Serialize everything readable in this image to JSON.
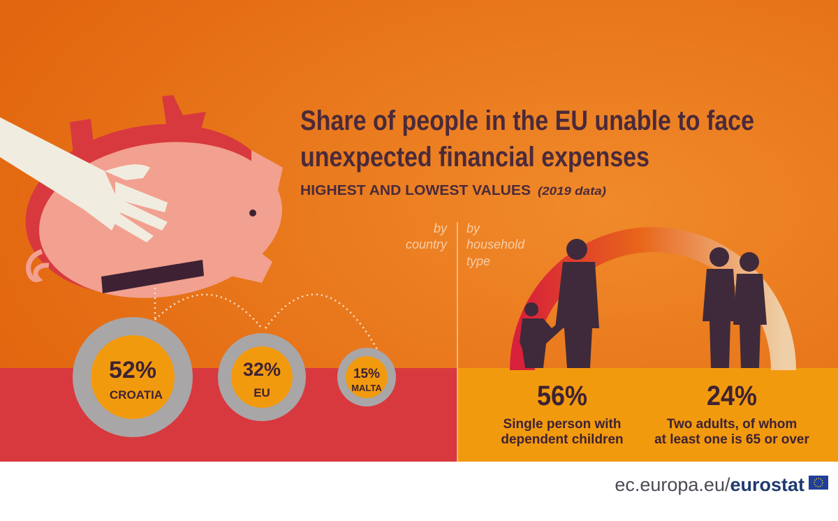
{
  "header": {
    "title_lines": [
      "Share of people in the EU unable to face",
      "unexpected financial expenses"
    ],
    "subtitle": "HIGHEST AND LOWEST VALUES",
    "note": "(2019 data)"
  },
  "by_country": {
    "label_lines": [
      "by",
      "country"
    ],
    "coins": [
      {
        "value": "52%",
        "label": "CROATIA"
      },
      {
        "value": "32%",
        "label": "EU"
      },
      {
        "value": "15%",
        "label": "MALTA"
      }
    ]
  },
  "by_household": {
    "label_lines": [
      "by",
      "household",
      "type"
    ],
    "items": [
      {
        "value": "56%",
        "lines": [
          "Single person with",
          "dependent children"
        ]
      },
      {
        "value": "24%",
        "lines": [
          "Two adults,  of whom",
          "at least one is 65 or over"
        ]
      }
    ]
  },
  "footer": {
    "url": "ec.europa.eu/",
    "brand": "eurostat"
  }
}
